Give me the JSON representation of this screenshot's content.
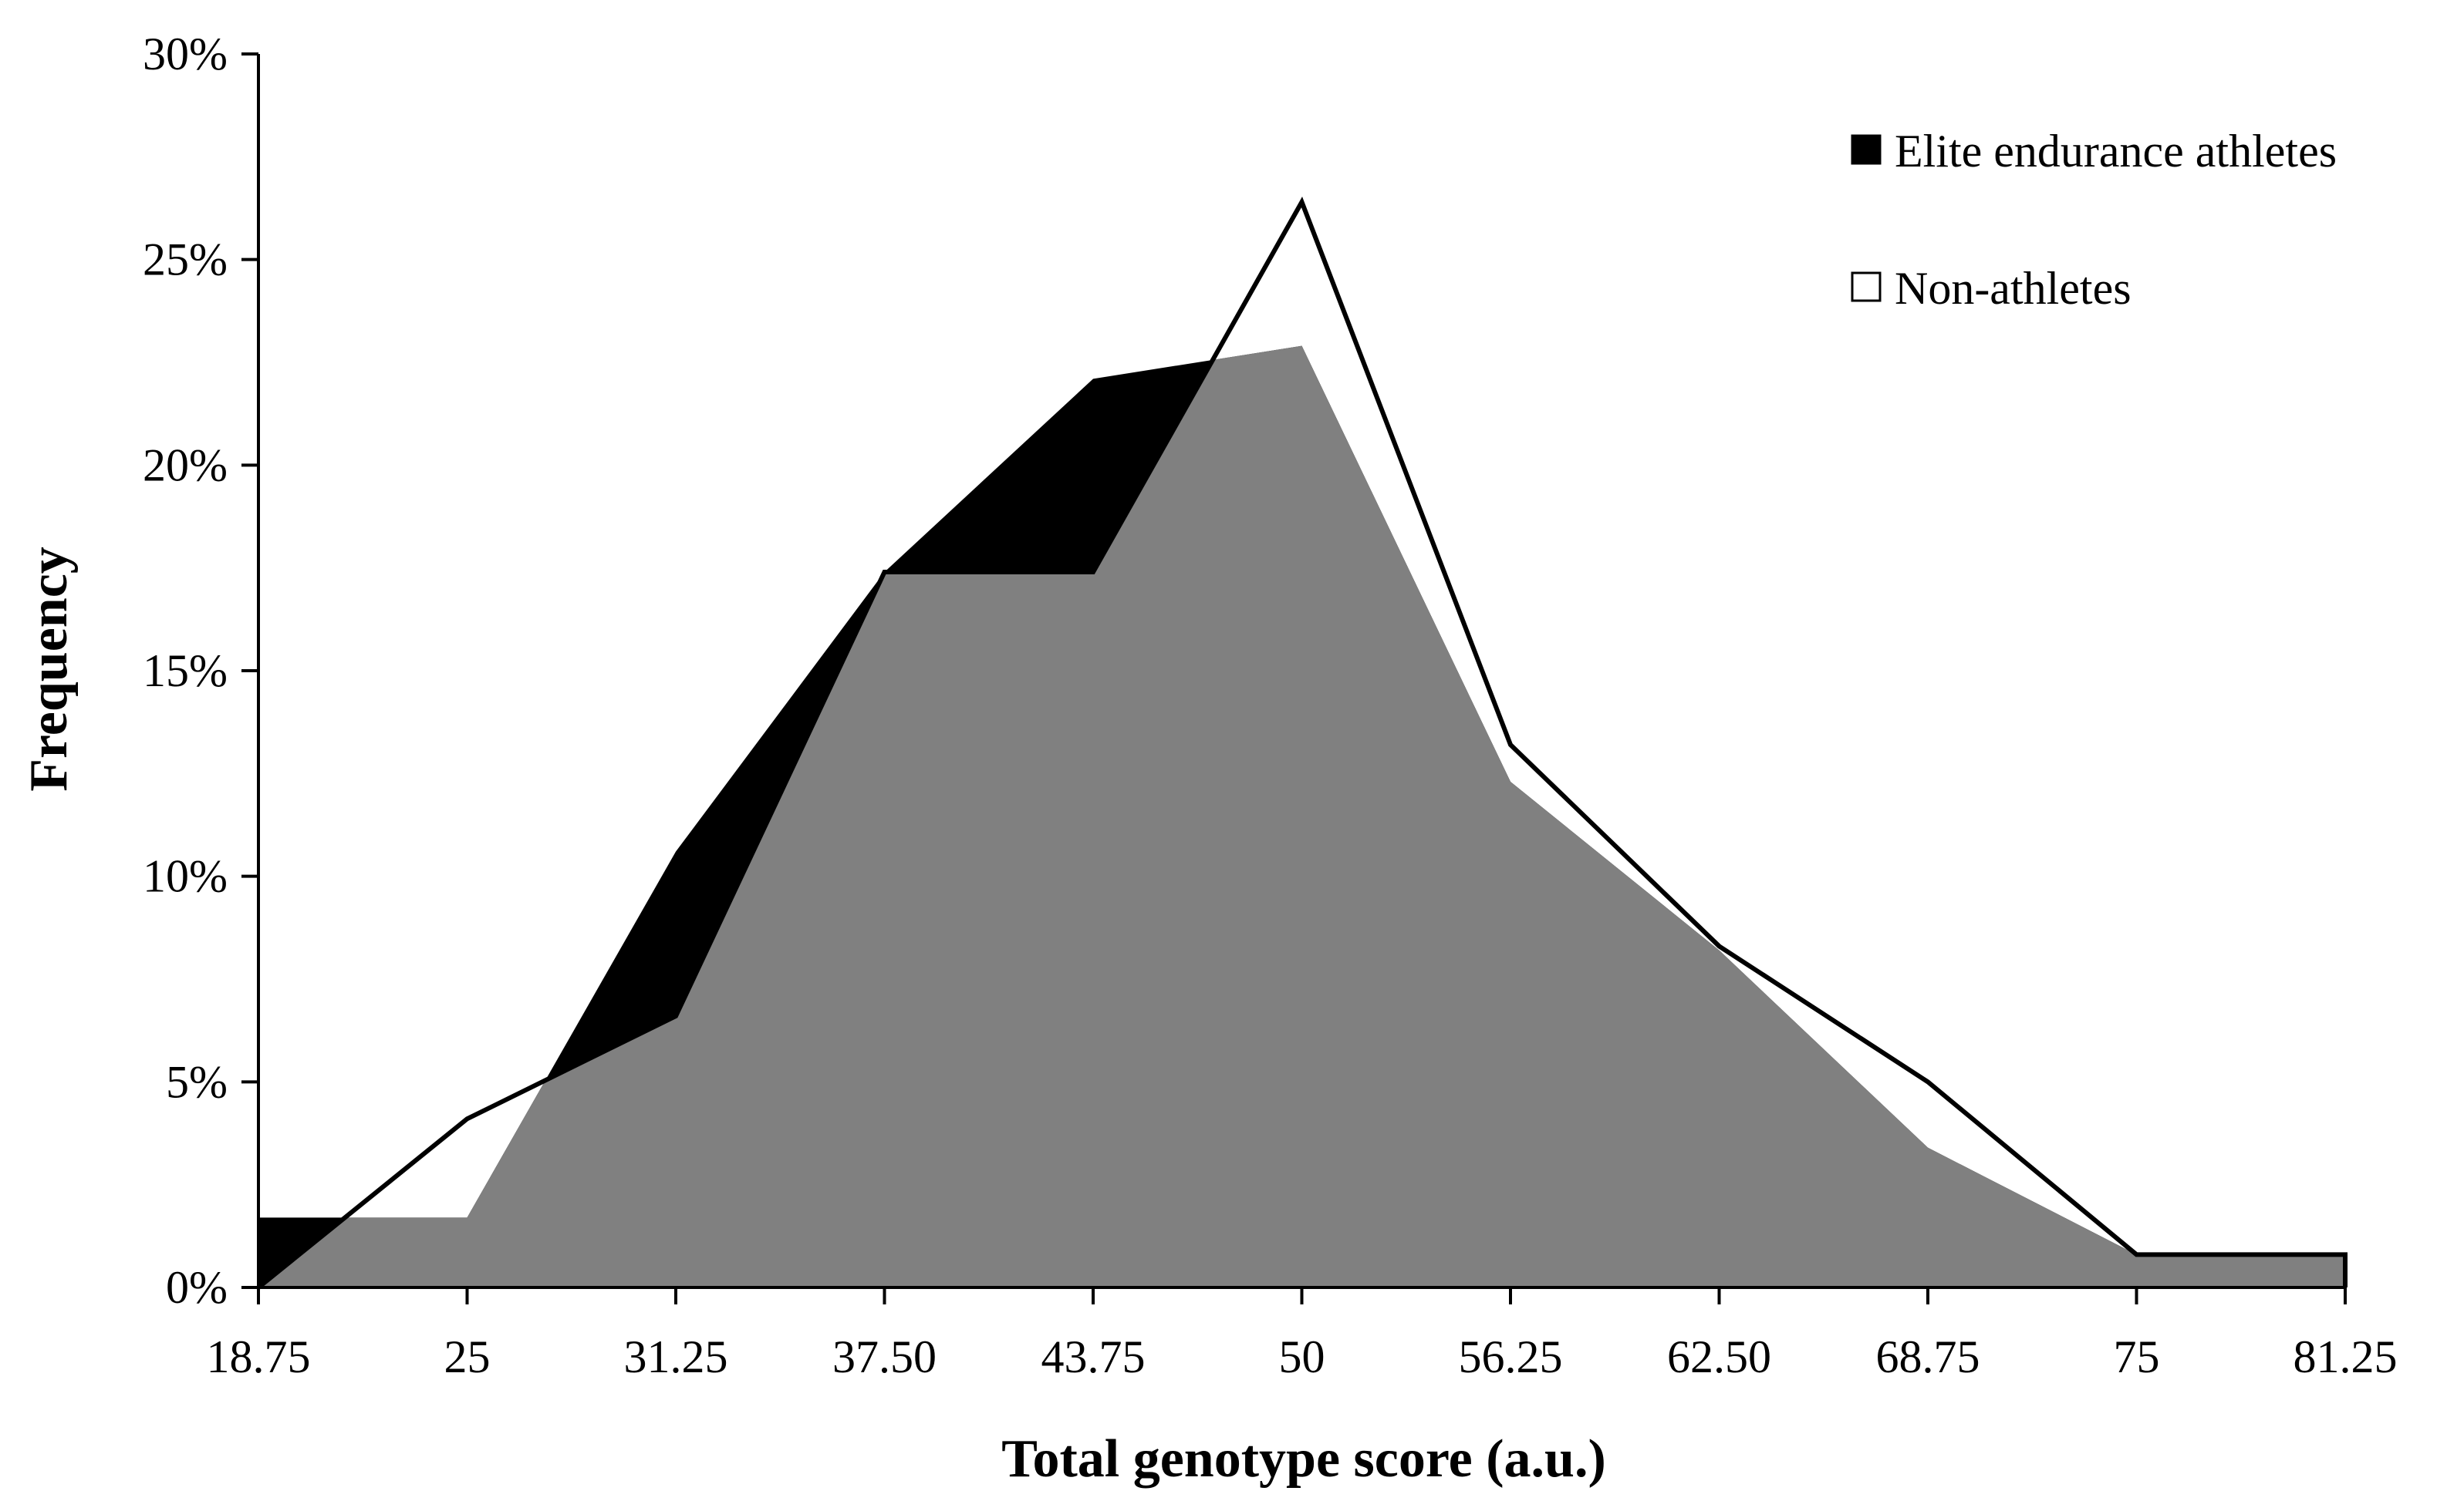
{
  "chart_data": {
    "type": "area",
    "xlabel": "Total genotype score (a.u.)",
    "ylabel": "Frequency",
    "x_tick_labels": [
      "18.75",
      "25",
      "31.25",
      "37.50",
      "43.75",
      "50",
      "56.25",
      "62.50",
      "68.75",
      "75",
      "81.25"
    ],
    "y_tick_labels": [
      "0%",
      "5%",
      "10%",
      "15%",
      "20%",
      "25%",
      "30%"
    ],
    "xlim": [
      18.75,
      81.25
    ],
    "ylim": [
      0,
      30
    ],
    "y_ticks": [
      0,
      5,
      10,
      15,
      20,
      25,
      30
    ],
    "grid": false,
    "legend_position": "top-right",
    "series": [
      {
        "name": "Elite endurance athletes",
        "style": "filled-black",
        "color": "#000000",
        "x": [
          18.75,
          20.3,
          25,
          31.25,
          37.5,
          43.75,
          50,
          56.25,
          62.5,
          68.75,
          75,
          81.25
        ],
        "values": [
          1.7,
          1.7,
          1.7,
          10.6,
          17.4,
          22.1,
          22.9,
          12.3,
          8.2,
          3.4,
          0.8,
          0.8
        ]
      },
      {
        "name": "Non-athletes",
        "style": "outline",
        "color": "#000000",
        "x": [
          18.75,
          25,
          31.25,
          37.5,
          43.75,
          50,
          56.25,
          62.5,
          68.75,
          75,
          81.25
        ],
        "values": [
          0,
          4.1,
          6.6,
          17.4,
          17.4,
          26.4,
          13.2,
          8.3,
          5.0,
          0.8,
          0.8
        ]
      }
    ],
    "overlap_color": "#808080"
  }
}
